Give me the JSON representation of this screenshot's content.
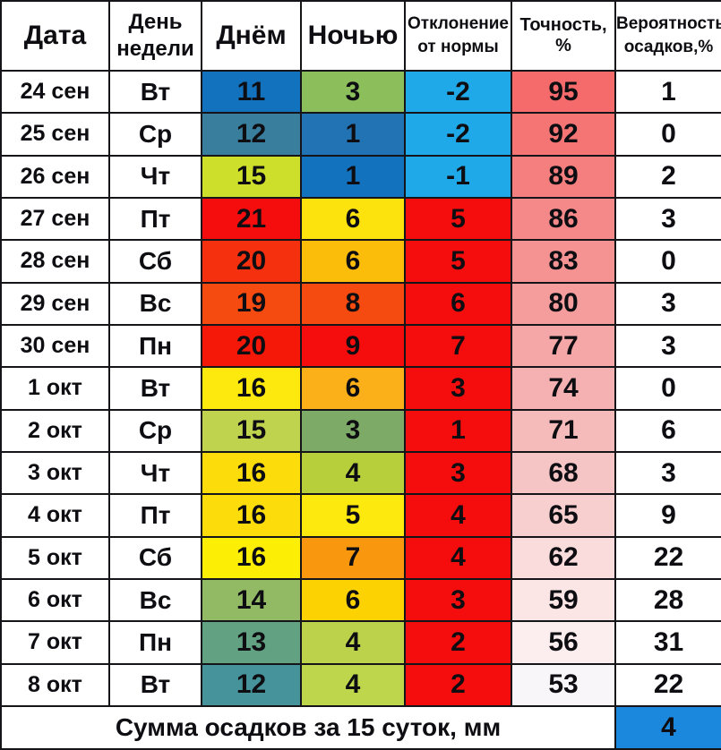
{
  "table": {
    "columns": [
      {
        "label": "Дата"
      },
      {
        "label": "День недели"
      },
      {
        "label": "Днём"
      },
      {
        "label": "Ночью"
      },
      {
        "label": "Отклонение от нормы"
      },
      {
        "label": "Точность, %"
      },
      {
        "label": "Вероятность осадков,%"
      }
    ],
    "rows": [
      {
        "date": "24 сен",
        "dow": "Вт",
        "day": "11",
        "day_bg": "#1272be",
        "night": "3",
        "night_bg": "#8cbe5c",
        "dev": "-2",
        "dev_bg": "#1fa9e8",
        "acc": "95",
        "acc_bg": "#f56b6b",
        "prob": "1"
      },
      {
        "date": "25 сен",
        "dow": "Ср",
        "day": "12",
        "day_bg": "#3a7e9e",
        "night": "1",
        "night_bg": "#2173b4",
        "dev": "-2",
        "dev_bg": "#1fa9e8",
        "acc": "92",
        "acc_bg": "#f57575",
        "prob": "0"
      },
      {
        "date": "26 сен",
        "dow": "Чт",
        "day": "15",
        "day_bg": "#cdde2b",
        "night": "1",
        "night_bg": "#1272be",
        "dev": "-1",
        "dev_bg": "#1fa9e8",
        "acc": "89",
        "acc_bg": "#f57f7f",
        "prob": "2"
      },
      {
        "date": "27 сен",
        "dow": "Пт",
        "day": "21",
        "day_bg": "#f50d0d",
        "night": "6",
        "night_bg": "#fde30d",
        "dev": "5",
        "dev_bg": "#f50d0d",
        "acc": "86",
        "acc_bg": "#f58989",
        "prob": "3"
      },
      {
        "date": "28 сен",
        "dow": "Сб",
        "day": "20",
        "day_bg": "#f5300f",
        "night": "6",
        "night_bg": "#fbbc0a",
        "dev": "5",
        "dev_bg": "#f50d0d",
        "acc": "83",
        "acc_bg": "#f59393",
        "prob": "0"
      },
      {
        "date": "29 сен",
        "dow": "Вс",
        "day": "19",
        "day_bg": "#f54a10",
        "night": "8",
        "night_bg": "#f54a10",
        "dev": "6",
        "dev_bg": "#f50d0d",
        "acc": "80",
        "acc_bg": "#f59d9d",
        "prob": "3"
      },
      {
        "date": "30 сен",
        "dow": "Пн",
        "day": "20",
        "day_bg": "#f51708",
        "night": "9",
        "night_bg": "#f50d0d",
        "dev": "7",
        "dev_bg": "#f50d0d",
        "acc": "77",
        "acc_bg": "#f5a7a7",
        "prob": "3"
      },
      {
        "date": "1 окт",
        "dow": "Вт",
        "day": "16",
        "day_bg": "#fde90d",
        "night": "6",
        "night_bg": "#fbaf18",
        "dev": "3",
        "dev_bg": "#f50d0d",
        "acc": "74",
        "acc_bg": "#f5b1b1",
        "prob": "0"
      },
      {
        "date": "2 окт",
        "dow": "Ср",
        "day": "15",
        "day_bg": "#bfd34e",
        "night": "3",
        "night_bg": "#7dab67",
        "dev": "1",
        "dev_bg": "#f50d0d",
        "acc": "71",
        "acc_bg": "#f5bbbb",
        "prob": "6"
      },
      {
        "date": "3 окт",
        "dow": "Чт",
        "day": "16",
        "day_bg": "#fcdc0a",
        "night": "4",
        "night_bg": "#b8cf3c",
        "dev": "3",
        "dev_bg": "#f50d0d",
        "acc": "68",
        "acc_bg": "#f5c5c5",
        "prob": "3"
      },
      {
        "date": "4 окт",
        "dow": "Пт",
        "day": "16",
        "day_bg": "#fcdc0a",
        "night": "5",
        "night_bg": "#fde90d",
        "dev": "4",
        "dev_bg": "#f50d0d",
        "acc": "65",
        "acc_bg": "#f7cfcf",
        "prob": "9"
      },
      {
        "date": "5 окт",
        "dow": "Сб",
        "day": "16",
        "day_bg": "#fdee06",
        "night": "7",
        "night_bg": "#f9970e",
        "dev": "4",
        "dev_bg": "#f50d0d",
        "acc": "62",
        "acc_bg": "#fadcdc",
        "prob": "22"
      },
      {
        "date": "6 окт",
        "dow": "Вс",
        "day": "14",
        "day_bg": "#92b964",
        "night": "6",
        "night_bg": "#fcd203",
        "dev": "3",
        "dev_bg": "#f50d0d",
        "acc": "59",
        "acc_bg": "#fbe5e5",
        "prob": "28"
      },
      {
        "date": "7 окт",
        "dow": "Пн",
        "day": "13",
        "day_bg": "#62a181",
        "night": "4",
        "night_bg": "#bcd24a",
        "dev": "2",
        "dev_bg": "#f50d0d",
        "acc": "56",
        "acc_bg": "#fceeee",
        "prob": "31"
      },
      {
        "date": "8 окт",
        "dow": "Вт",
        "day": "12",
        "day_bg": "#46939c",
        "night": "4",
        "night_bg": "#bdd64b",
        "dev": "2",
        "dev_bg": "#f50d0d",
        "acc": "53",
        "acc_bg": "#f9f6fa",
        "prob": "22"
      }
    ],
    "footer": {
      "label": "Сумма осадков за 15 суток, мм",
      "value": "4",
      "value_bg": "#1b88dd"
    }
  },
  "colors": {
    "border": "#141419",
    "text": "#0d0d12",
    "cold_blue": "#1272be",
    "cool_lightblue": "#1fa9e8",
    "hot_red": "#f50d0d",
    "accuracy_high": "#f56b6b",
    "precip_sum_blue": "#1b88dd"
  }
}
